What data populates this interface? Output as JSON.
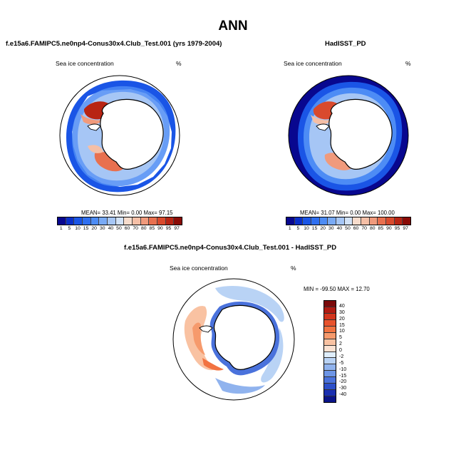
{
  "main_title": "ANN",
  "panels": {
    "model": {
      "title": "f.e15a6.FAMIPC5.ne0np4-Conus30x4.Club_Test.001 (yrs 1979-2004)",
      "variable": "Sea ice concentration",
      "units": "%",
      "stats": "MEAN=  33.41  Min=   0.00  Max=  97.15"
    },
    "obs": {
      "title": "HadISST_PD",
      "variable": "Sea ice concentration",
      "units": "%",
      "stats": "MEAN=  31.07  Min=   0.00  Max= 100.00"
    },
    "diff": {
      "title": "f.e15a6.FAMIPC5.ne0np4-Conus30x4.Club_Test.001 - HadISST_PD",
      "variable": "Sea ice concentration",
      "units": "%",
      "stats": "MIN = -99.50 MAX =  12.70"
    }
  },
  "colorbar_main": {
    "labels": [
      "1",
      "5",
      "10",
      "15",
      "20",
      "30",
      "40",
      "50",
      "60",
      "70",
      "80",
      "85",
      "90",
      "95",
      "97"
    ],
    "colors": [
      "#08078f",
      "#0a2fc9",
      "#1a55e6",
      "#2f6ff0",
      "#4d8cf5",
      "#79aaf5",
      "#a6c6f5",
      "#d2e2f7",
      "#f7dccc",
      "#f5bfa6",
      "#f09a7c",
      "#e8704f",
      "#d94a2d",
      "#b82413",
      "#8a0b06"
    ]
  },
  "colorbar_diff": {
    "labels": [
      "40",
      "30",
      "20",
      "15",
      "10",
      "5",
      "2",
      "0",
      "-2",
      "-5",
      "-10",
      "-15",
      "-20",
      "-30",
      "-40"
    ],
    "colors": [
      "#7a0a0a",
      "#b01b12",
      "#d2351d",
      "#e8532d",
      "#f27341",
      "#f69a6c",
      "#f9c2a2",
      "#fbe2d2",
      "#dfeefb",
      "#b9d3f5",
      "#90b3ee",
      "#6d95e6",
      "#4a72dc",
      "#2c4fc9",
      "#1a2fb0",
      "#0a1489"
    ]
  }
}
